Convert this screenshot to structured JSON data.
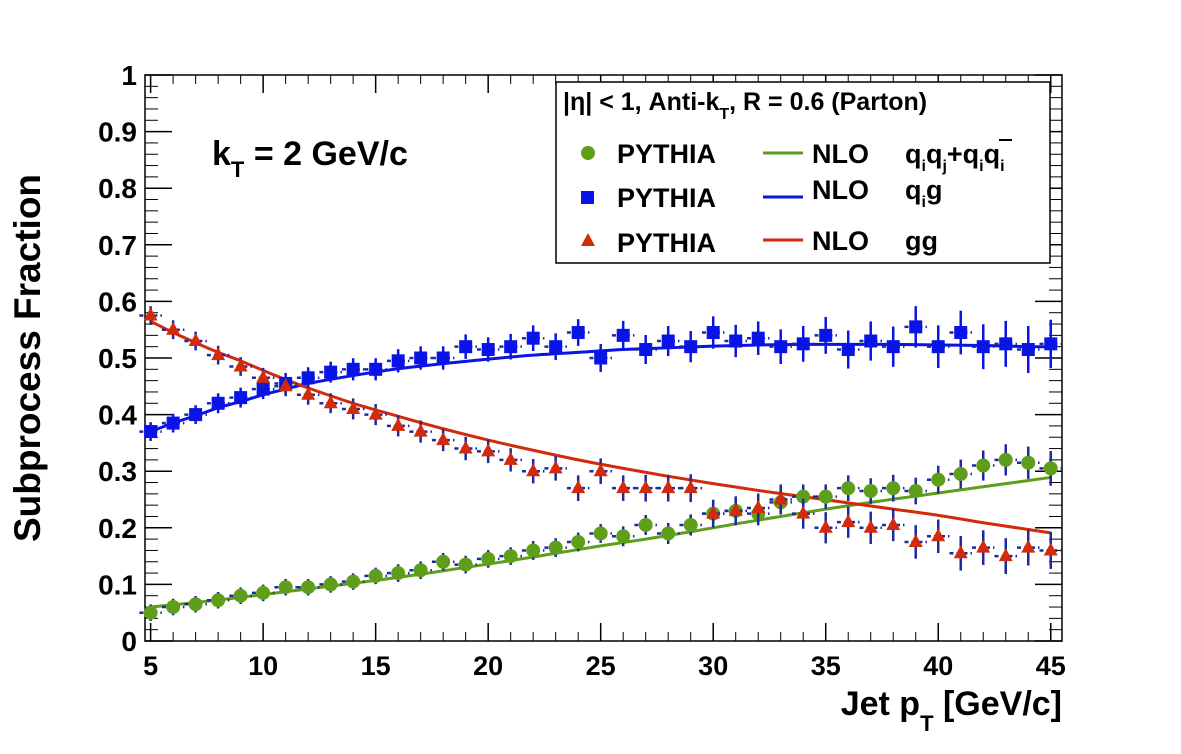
{
  "chart_data": {
    "type": "scatter",
    "xlabel": {
      "base": "Jet p",
      "sub": "T",
      "rest": " [GeV/c]"
    },
    "ylabel": "Subprocess Fraction",
    "xlim": [
      4.75,
      45.5
    ],
    "ylim": [
      0,
      1
    ],
    "xticks": [
      5,
      10,
      15,
      20,
      25,
      30,
      35,
      40,
      45
    ],
    "yticks": [
      0,
      0.1,
      0.2,
      0.3,
      0.4,
      0.5,
      0.6,
      0.7,
      0.8,
      0.9,
      1
    ],
    "ytick_labels": [
      "0",
      "0.1",
      "0.2",
      "0.3",
      "0.4",
      "0.5",
      "0.6",
      "0.7",
      "0.8",
      "0.9",
      "1"
    ],
    "grid": false,
    "annotation": {
      "base": "k",
      "sub": "T",
      "rest": " = 2 GeV/c"
    },
    "legend": {
      "placement": "top-right",
      "header": {
        "part1": "|η| < 1, Anti-k",
        "sub": "T",
        "part2": ", R = 0.6 (Parton)"
      },
      "entries": [
        {
          "marker_label": "PYTHIA",
          "line_label": "NLO",
          "process": "qiqj+qiq̄i"
        },
        {
          "marker_label": "PYTHIA",
          "line_label": "NLO",
          "process": "qig"
        },
        {
          "marker_label": "PYTHIA",
          "line_label": "NLO",
          "process": "gg"
        }
      ]
    },
    "colors": {
      "qq": "#5e9e1a",
      "qg": "#0a14e6",
      "gg": "#d22a0a",
      "errbar": "#1d2a9e"
    },
    "x": [
      5,
      6,
      7,
      8,
      9,
      10,
      11,
      12,
      13,
      14,
      15,
      16,
      17,
      18,
      19,
      20,
      21,
      22,
      23,
      24,
      25,
      26,
      27,
      28,
      29,
      30,
      31,
      32,
      33,
      34,
      35,
      36,
      37,
      38,
      39,
      40,
      41,
      42,
      43,
      44,
      45
    ],
    "series": [
      {
        "name": "PYTHIA",
        "process": "qq",
        "marker": "circle",
        "values": [
          0.05,
          0.06,
          0.065,
          0.072,
          0.08,
          0.085,
          0.095,
          0.095,
          0.1,
          0.105,
          0.115,
          0.12,
          0.125,
          0.14,
          0.135,
          0.145,
          0.15,
          0.16,
          0.165,
          0.175,
          0.19,
          0.185,
          0.205,
          0.19,
          0.205,
          0.225,
          0.23,
          0.225,
          0.245,
          0.255,
          0.255,
          0.27,
          0.265,
          0.27,
          0.265,
          0.285,
          0.295,
          0.31,
          0.32,
          0.315,
          0.305
        ],
        "errors": [
          0.004,
          0.004,
          0.004,
          0.004,
          0.004,
          0.004,
          0.004,
          0.004,
          0.004,
          0.004,
          0.004,
          0.005,
          0.005,
          0.005,
          0.005,
          0.005,
          0.005,
          0.006,
          0.006,
          0.006,
          0.006,
          0.007,
          0.007,
          0.008,
          0.008,
          0.009,
          0.009,
          0.01,
          0.01,
          0.011,
          0.011,
          0.012,
          0.012,
          0.013,
          0.013,
          0.014,
          0.015,
          0.016,
          0.017,
          0.018,
          0.02
        ]
      },
      {
        "name": "PYTHIA",
        "process": "qg",
        "marker": "square",
        "values": [
          0.37,
          0.385,
          0.4,
          0.42,
          0.43,
          0.445,
          0.455,
          0.465,
          0.475,
          0.48,
          0.48,
          0.495,
          0.5,
          0.5,
          0.52,
          0.515,
          0.52,
          0.535,
          0.52,
          0.545,
          0.5,
          0.54,
          0.515,
          0.53,
          0.52,
          0.545,
          0.53,
          0.535,
          0.52,
          0.525,
          0.54,
          0.515,
          0.53,
          0.52,
          0.555,
          0.52,
          0.545,
          0.52,
          0.525,
          0.515,
          0.525
        ],
        "errors": [
          0.006,
          0.006,
          0.006,
          0.007,
          0.007,
          0.007,
          0.008,
          0.008,
          0.008,
          0.009,
          0.009,
          0.01,
          0.01,
          0.01,
          0.011,
          0.011,
          0.012,
          0.012,
          0.013,
          0.013,
          0.014,
          0.015,
          0.015,
          0.016,
          0.017,
          0.018,
          0.018,
          0.019,
          0.02,
          0.021,
          0.022,
          0.023,
          0.024,
          0.025,
          0.026,
          0.027,
          0.028,
          0.029,
          0.03,
          0.031,
          0.032
        ]
      },
      {
        "name": "PYTHIA",
        "process": "gg",
        "marker": "triangle",
        "values": [
          0.575,
          0.55,
          0.53,
          0.505,
          0.485,
          0.465,
          0.45,
          0.435,
          0.42,
          0.41,
          0.4,
          0.38,
          0.37,
          0.355,
          0.34,
          0.335,
          0.32,
          0.3,
          0.305,
          0.27,
          0.3,
          0.27,
          0.27,
          0.27,
          0.27,
          0.225,
          0.23,
          0.235,
          0.25,
          0.225,
          0.2,
          0.21,
          0.2,
          0.205,
          0.175,
          0.185,
          0.155,
          0.165,
          0.15,
          0.165,
          0.16
        ],
        "errors": [
          0.006,
          0.006,
          0.006,
          0.006,
          0.006,
          0.007,
          0.007,
          0.007,
          0.007,
          0.008,
          0.008,
          0.008,
          0.009,
          0.009,
          0.01,
          0.01,
          0.01,
          0.011,
          0.011,
          0.012,
          0.012,
          0.012,
          0.013,
          0.013,
          0.014,
          0.014,
          0.015,
          0.015,
          0.016,
          0.016,
          0.017,
          0.017,
          0.018,
          0.018,
          0.019,
          0.019,
          0.02,
          0.02,
          0.021,
          0.021,
          0.022
        ]
      }
    ],
    "nlo_curves": [
      {
        "name": "NLO",
        "process": "qq",
        "x": [
          5,
          7,
          9,
          11,
          13,
          15,
          17,
          19,
          21,
          23,
          25,
          27,
          29,
          31,
          33,
          35,
          37,
          39,
          41,
          43,
          45
        ],
        "values": [
          0.06,
          0.068,
          0.077,
          0.087,
          0.097,
          0.107,
          0.118,
          0.13,
          0.142,
          0.155,
          0.168,
          0.18,
          0.193,
          0.207,
          0.22,
          0.233,
          0.245,
          0.256,
          0.267,
          0.278,
          0.289
        ]
      },
      {
        "name": "NLO",
        "process": "qg",
        "x": [
          5,
          6,
          7,
          8,
          9,
          10,
          11,
          12,
          14,
          16,
          18,
          20,
          22,
          24,
          26,
          28,
          30,
          32,
          34,
          36,
          38,
          40,
          42,
          44,
          45
        ],
        "values": [
          0.37,
          0.385,
          0.398,
          0.412,
          0.423,
          0.435,
          0.445,
          0.455,
          0.469,
          0.481,
          0.49,
          0.498,
          0.505,
          0.51,
          0.515,
          0.518,
          0.521,
          0.523,
          0.524,
          0.524,
          0.524,
          0.523,
          0.522,
          0.52,
          0.52
        ]
      },
      {
        "name": "NLO",
        "process": "gg",
        "x": [
          5,
          6,
          7,
          8,
          9,
          10,
          11,
          12,
          14,
          16,
          18,
          20,
          22,
          24,
          26,
          28,
          30,
          32,
          34,
          36,
          38,
          40,
          42,
          44,
          45
        ],
        "values": [
          0.565,
          0.545,
          0.527,
          0.51,
          0.495,
          0.478,
          0.462,
          0.447,
          0.42,
          0.397,
          0.375,
          0.355,
          0.337,
          0.32,
          0.305,
          0.291,
          0.278,
          0.266,
          0.255,
          0.244,
          0.233,
          0.222,
          0.209,
          0.197,
          0.191
        ]
      }
    ]
  }
}
